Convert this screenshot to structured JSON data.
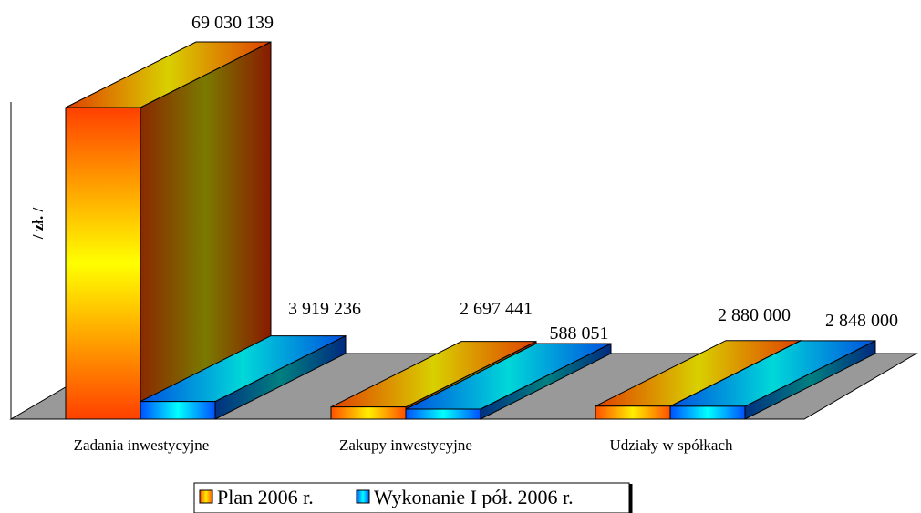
{
  "chart_data": {
    "type": "bar",
    "ylabel": "/ zł. /",
    "categories": [
      "Zadania inwestycyjne",
      "Zakupy inwestycyjne",
      "Udziały w spółkach"
    ],
    "series": [
      {
        "name": "Plan 2006 r.",
        "values": [
          69030139,
          2697441,
          2880000
        ],
        "labels": [
          "69 030 139",
          "2 697 441",
          "2 880 000"
        ]
      },
      {
        "name": "Wykonanie I pół. 2006 r.",
        "values": [
          3919236,
          588051,
          2848000
        ],
        "labels": [
          "3 919 236",
          "588 051",
          "2 848 000"
        ]
      }
    ],
    "ylim": [
      0,
      69030139
    ],
    "grid": false,
    "legend_position": "bottom"
  }
}
